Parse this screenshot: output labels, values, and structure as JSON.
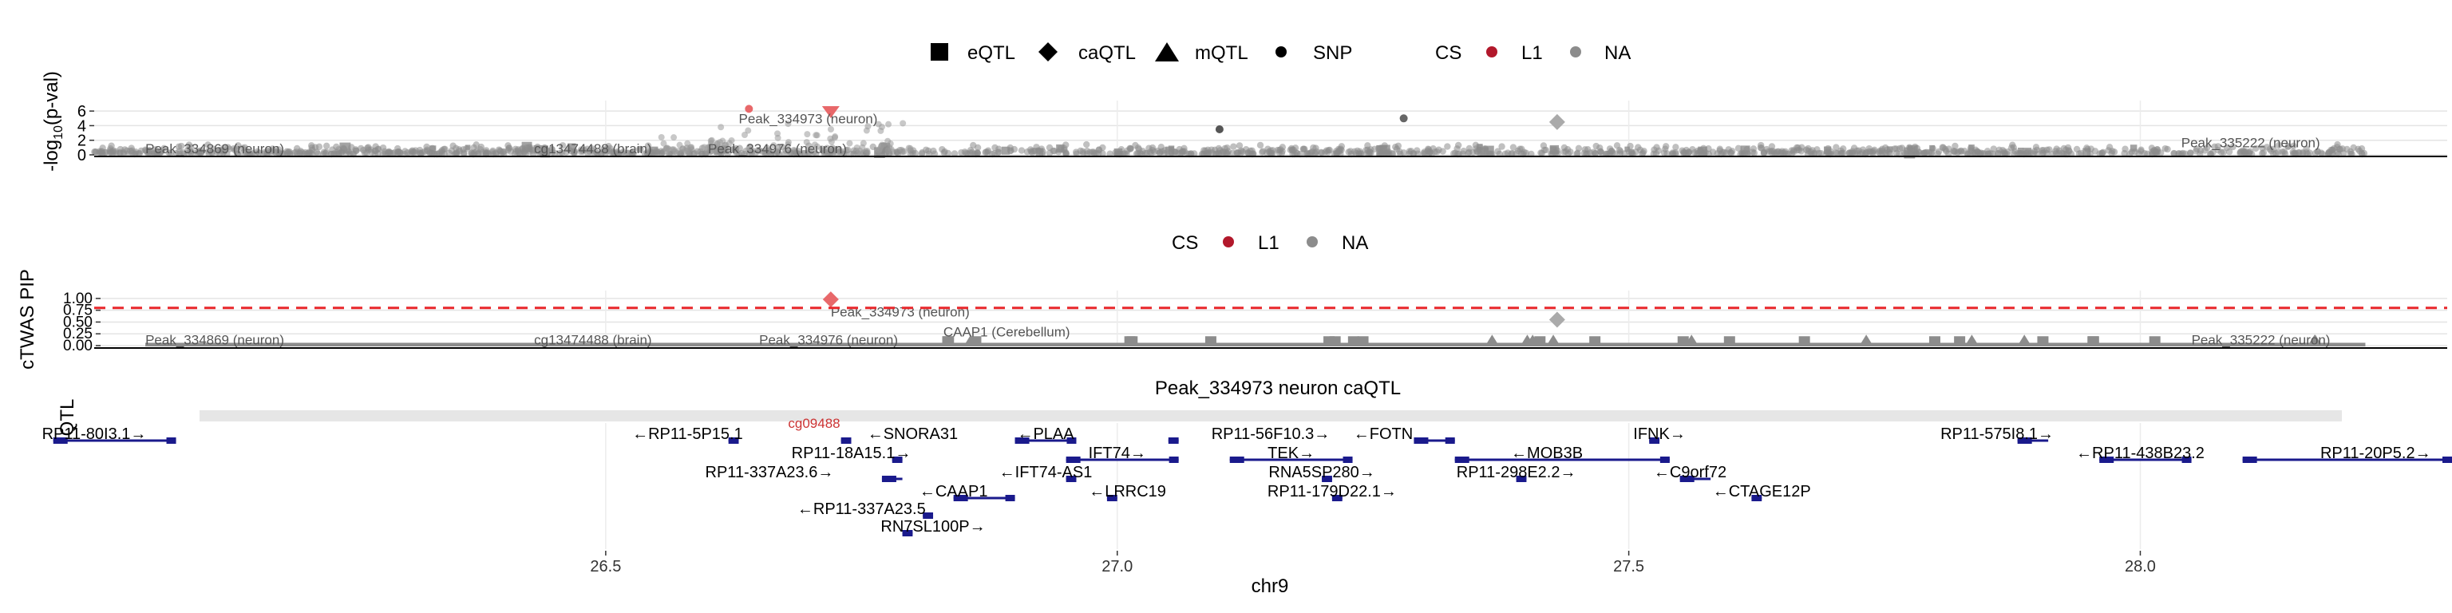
{
  "chart_data": [
    {
      "panel": "qtl",
      "type": "scatter",
      "ylabel": "-log10(p-val)",
      "ylabel_parts": {
        "pre": "-log",
        "sub": "10",
        "post": "(p-val)"
      },
      "yticks": [
        "0",
        "2",
        "4",
        "6"
      ],
      "ylim": [
        0,
        7
      ],
      "xlim": [
        26.0,
        28.3
      ],
      "legend": {
        "shape_entries": [
          {
            "label": "eQTL",
            "shape": "square"
          },
          {
            "label": "caQTL",
            "shape": "diamond"
          },
          {
            "label": "mQTL",
            "shape": "triangle"
          },
          {
            "label": "SNP",
            "shape": "dot"
          }
        ],
        "cs_title": "CS",
        "cs_entries": [
          {
            "label": "L1",
            "color": "#b2182b"
          },
          {
            "label": "NA",
            "color": "#8c8c8c"
          }
        ]
      },
      "highlight": [
        {
          "x": 26.72,
          "y": 5.9,
          "shape": "triangle-down",
          "color": "#e8686a"
        },
        {
          "x": 26.64,
          "y": 6.3,
          "shape": "dot",
          "color": "#e8686a"
        },
        {
          "x": 27.43,
          "y": 4.5,
          "shape": "diamond",
          "color": "#aaaaaa"
        },
        {
          "x": 27.28,
          "y": 5.0,
          "shape": "dot",
          "color": "#666666"
        },
        {
          "x": 27.1,
          "y": 3.5,
          "shape": "dot",
          "color": "#555555"
        }
      ],
      "annotations": [
        {
          "text": "Peak_334973 (neuron)",
          "x": 26.63,
          "y": 5.0
        },
        {
          "text": "Peak_334869 (neuron)",
          "x": 26.05,
          "y": 0.9
        },
        {
          "text": "cg13474488 (brain)",
          "x": 26.43,
          "y": 0.9
        },
        {
          "text": "Peak_334976 (neuron)",
          "x": 26.6,
          "y": 0.9
        },
        {
          "text": "Peak_335222 (neuron)",
          "x": 28.04,
          "y": 1.7
        }
      ]
    },
    {
      "panel": "ctwas",
      "type": "scatter",
      "ylabel": "cTWAS PIP",
      "yticks": [
        "0.00",
        "0.25",
        "0.50",
        "0.75",
        "1.00"
      ],
      "ylim": [
        0,
        1.1
      ],
      "xlim": [
        26.0,
        28.3
      ],
      "threshold": 0.8,
      "legend": {
        "cs_title": "CS",
        "cs_entries": [
          {
            "label": "L1",
            "color": "#b2182b"
          },
          {
            "label": "NA",
            "color": "#8c8c8c"
          }
        ]
      },
      "highlight": [
        {
          "x": 26.72,
          "y": 0.98,
          "shape": "diamond",
          "color": "#e8686a"
        },
        {
          "x": 27.43,
          "y": 0.55,
          "shape": "diamond",
          "color": "#aaaaaa"
        }
      ],
      "annotations": [
        {
          "text": "Peak_334973 (neuron)",
          "x": 26.72,
          "y": 0.72
        },
        {
          "text": "Peak_334869 (neuron)",
          "x": 26.05,
          "y": 0.13
        },
        {
          "text": "cg13474488 (brain)",
          "x": 26.43,
          "y": 0.13
        },
        {
          "text": "Peak_334976 (neuron)",
          "x": 26.65,
          "y": 0.13
        },
        {
          "text": "CAAP1 (Cerebellum)",
          "x": 26.83,
          "y": 0.3
        },
        {
          "text": "Peak_335222 (neuron)",
          "x": 28.05,
          "y": 0.13
        }
      ]
    },
    {
      "panel": "track",
      "type": "genes",
      "title": "Peak_334973 neuron caQTL",
      "ylabel_fragment": "QTL",
      "peak_label": "cg09488",
      "xlabel": "chr9",
      "xlim": [
        26.0,
        28.3
      ],
      "xticks": [
        26.5,
        27.0,
        27.5,
        28.0
      ],
      "xtick_labels": [
        "26.5",
        "27.0",
        "27.5",
        "28.0"
      ],
      "genes": [
        {
          "label": "RP11-80I3.1→",
          "start": 25.96,
          "end": 26.08,
          "row": 0,
          "lx": 26.0
        },
        {
          "label": "←RP11-5P15.1",
          "start": 26.62,
          "end": 26.63,
          "row": 0,
          "lx": 26.58
        },
        {
          "label": "←SNORA31",
          "start": 26.73,
          "end": 26.74,
          "row": 0,
          "lx": 26.8
        },
        {
          "label": "←PLAA",
          "start": 26.9,
          "end": 26.96,
          "row": 0,
          "lx": 26.93
        },
        {
          "label": "RP11-56F10.3→",
          "start": 27.05,
          "end": 27.06,
          "row": 0,
          "lx": 27.15
        },
        {
          "label": "←FOTN",
          "start": 27.29,
          "end": 27.33,
          "row": 0,
          "lx": 27.26
        },
        {
          "label": "IFNK→",
          "start": 27.52,
          "end": 27.53,
          "row": 0,
          "lx": 27.53
        },
        {
          "label": "RP11-575I8.1→",
          "start": 27.88,
          "end": 27.91,
          "row": 0,
          "lx": 27.86
        },
        {
          "label": "RP11-18A15.1→",
          "start": 26.78,
          "end": 26.79,
          "row": 1,
          "lx": 26.74
        },
        {
          "label": "IFT74→",
          "start": 26.95,
          "end": 27.06,
          "row": 1,
          "lx": 27.0
        },
        {
          "label": "TEK→",
          "start": 27.11,
          "end": 27.23,
          "row": 1,
          "lx": 27.17
        },
        {
          "label": "←MOB3B",
          "start": 27.33,
          "end": 27.54,
          "row": 1,
          "lx": 27.42
        },
        {
          "label": "←RP11-438B23.2",
          "start": 27.96,
          "end": 28.05,
          "row": 1,
          "lx": 28.0
        },
        {
          "label": "RP11-20P5.2→",
          "start": 28.1,
          "end": 28.32,
          "row": 1,
          "lx": 28.23
        },
        {
          "label": "RP11-337A23.6→",
          "start": 26.77,
          "end": 26.79,
          "row": 2,
          "lx": 26.66
        },
        {
          "label": "←IFT74-AS1",
          "start": 26.95,
          "end": 26.96,
          "row": 2,
          "lx": 26.93
        },
        {
          "label": "RNA5SP280→",
          "start": 27.2,
          "end": 27.21,
          "row": 2,
          "lx": 27.2
        },
        {
          "label": "RP11-298E2.2→",
          "start": 27.39,
          "end": 27.4,
          "row": 2,
          "lx": 27.39
        },
        {
          "label": "←C9orf72",
          "start": 27.55,
          "end": 27.58,
          "row": 2,
          "lx": 27.56
        },
        {
          "label": "←CAAP1",
          "start": 26.84,
          "end": 26.9,
          "row": 3,
          "lx": 26.84
        },
        {
          "label": "←LRRC19",
          "start": 26.99,
          "end": 27.0,
          "row": 3,
          "lx": 27.01
        },
        {
          "label": "RP11-179D22.1→",
          "start": 27.21,
          "end": 27.22,
          "row": 3,
          "lx": 27.21
        },
        {
          "label": "←CTAGE12P",
          "start": 27.62,
          "end": 27.63,
          "row": 3,
          "lx": 27.63
        },
        {
          "label": "←RP11-337A23.5",
          "start": 26.81,
          "end": 26.82,
          "row": 4,
          "lx": 26.75
        },
        {
          "label": "RN7SL100P→",
          "start": 26.79,
          "end": 26.8,
          "row": 5,
          "lx": 26.82
        }
      ]
    }
  ]
}
